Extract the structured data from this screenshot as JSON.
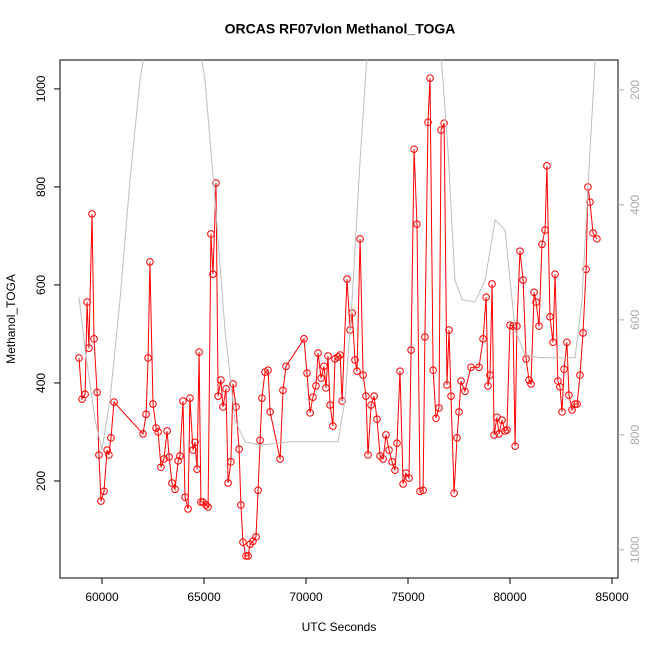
{
  "chart_data": {
    "type": "line",
    "title": "ORCAS RF07vlon Methanol_TOGA",
    "xlabel": "UTC Seconds",
    "ylabel": "Methanol_TOGA",
    "xlim": [
      57941,
      85294
    ],
    "ylim": [
      2,
      1059
    ],
    "y2lim": [
      1049,
      148
    ],
    "xticks": [
      60000,
      65000,
      70000,
      75000,
      80000,
      85000
    ],
    "yticks": [
      200,
      400,
      600,
      800,
      1000
    ],
    "y2ticks": [
      200,
      400,
      600,
      800,
      1000
    ],
    "series": [
      {
        "color": "#ff0000",
        "marker": "circle",
        "x": [
          58870,
          59020,
          59170,
          59270,
          59360,
          59510,
          59610,
          59760,
          59850,
          59950,
          60100,
          60250,
          60340,
          60440,
          60590,
          62010,
          62160,
          62260,
          62350,
          62500,
          62650,
          62750,
          62890,
          63040,
          63190,
          63290,
          63430,
          63580,
          63730,
          63820,
          63970,
          64070,
          64220,
          64310,
          64460,
          64560,
          64660,
          64760,
          64850,
          64950,
          65100,
          65200,
          65340,
          65440,
          65590,
          65690,
          65830,
          65930,
          66080,
          66180,
          66320,
          66420,
          66570,
          66720,
          66810,
          66910,
          67060,
          67160,
          67260,
          67400,
          67550,
          67650,
          67750,
          67840,
          67990,
          68140,
          68240,
          68730,
          68870,
          69020,
          69900,
          70050,
          70200,
          70340,
          70490,
          70590,
          70740,
          70880,
          70980,
          71080,
          71180,
          71320,
          71420,
          71570,
          71670,
          71770,
          72010,
          72160,
          72260,
          72400,
          72500,
          72650,
          72800,
          72940,
          73040,
          73190,
          73340,
          73480,
          73630,
          73780,
          73920,
          74070,
          74220,
          74360,
          74460,
          74610,
          74760,
          74900,
          75050,
          75150,
          75300,
          75440,
          75590,
          75740,
          75830,
          75980,
          76080,
          76230,
          76370,
          76520,
          76620,
          76770,
          76910,
          77010,
          77110,
          77260,
          77400,
          77500,
          77600,
          77790,
          78090,
          78480,
          78680,
          78830,
          78920,
          79020,
          79120,
          79220,
          79360,
          79460,
          79610,
          79760,
          79850,
          80000,
          80150,
          80250,
          80340,
          80490,
          80640,
          80790,
          80930,
          81030,
          81180,
          81280,
          81420,
          81570,
          81720,
          81810,
          81960,
          82110,
          82210,
          82350,
          82450,
          82550,
          82650,
          82790,
          82890,
          83040,
          83190,
          83290,
          83430,
          83580,
          83730,
          83820,
          83920,
          84070,
          84260
        ],
        "values": [
          451,
          367,
          377,
          565,
          471,
          745,
          490,
          381,
          253,
          159,
          179,
          263,
          253,
          288,
          361,
          296,
          336,
          451,
          647,
          357,
          308,
          300,
          228,
          245,
          302,
          249,
          196,
          183,
          241,
          251,
          363,
          167,
          143,
          369,
          263,
          279,
          224,
          463,
          157,
          157,
          151,
          147,
          704,
          622,
          808,
          373,
          406,
          351,
          388,
          196,
          239,
          398,
          351,
          265,
          151,
          75,
          47,
          47,
          71,
          77,
          86,
          181,
          283,
          369,
          422,
          426,
          341,
          245,
          385,
          434,
          490,
          420,
          339,
          371,
          394,
          461,
          410,
          434,
          390,
          455,
          355,
          312,
          449,
          453,
          457,
          363,
          612,
          508,
          543,
          447,
          424,
          694,
          416,
          373,
          253,
          355,
          373,
          326,
          251,
          245,
          294,
          263,
          239,
          222,
          277,
          424,
          194,
          216,
          206,
          467,
          877,
          724,
          179,
          181,
          494,
          932,
          1022,
          426,
          328,
          349,
          916,
          930,
          396,
          508,
          373,
          175,
          288,
          341,
          404,
          383,
          432,
          432,
          490,
          575,
          394,
          416,
          602,
          294,
          330,
          296,
          324,
          302,
          304,
          518,
          516,
          271,
          516,
          669,
          610,
          449,
          406,
          398,
          585,
          565,
          516,
          683,
          712,
          843,
          535,
          483,
          622,
          404,
          392,
          341,
          428,
          483,
          375,
          345,
          357,
          357,
          416,
          502,
          632,
          800,
          769,
          706,
          694
        ]
      },
      {
        "color": "#bebebe",
        "axis": "y2",
        "x": [
          58870,
          59170,
          59660,
          60000,
          60390,
          60880,
          61370,
          61860,
          62350,
          64560,
          65050,
          65540,
          66030,
          66520,
          67010,
          67750,
          69220,
          71570,
          71910,
          72260,
          72650,
          73040,
          76570,
          76960,
          77300,
          77650,
          78290,
          78780,
          79270,
          79760,
          80250,
          80740,
          81470,
          83190,
          83530,
          83920,
          84260
        ],
        "values": [
          560,
          652,
          774,
          826,
          739,
          565,
          357,
          183,
          78,
          78,
          183,
          391,
          618,
          774,
          812,
          818,
          812,
          812,
          739,
          565,
          322,
          113,
          113,
          305,
          531,
          565,
          569,
          531,
          426,
          444,
          618,
          661,
          666,
          666,
          565,
          305,
          96
        ]
      }
    ]
  }
}
